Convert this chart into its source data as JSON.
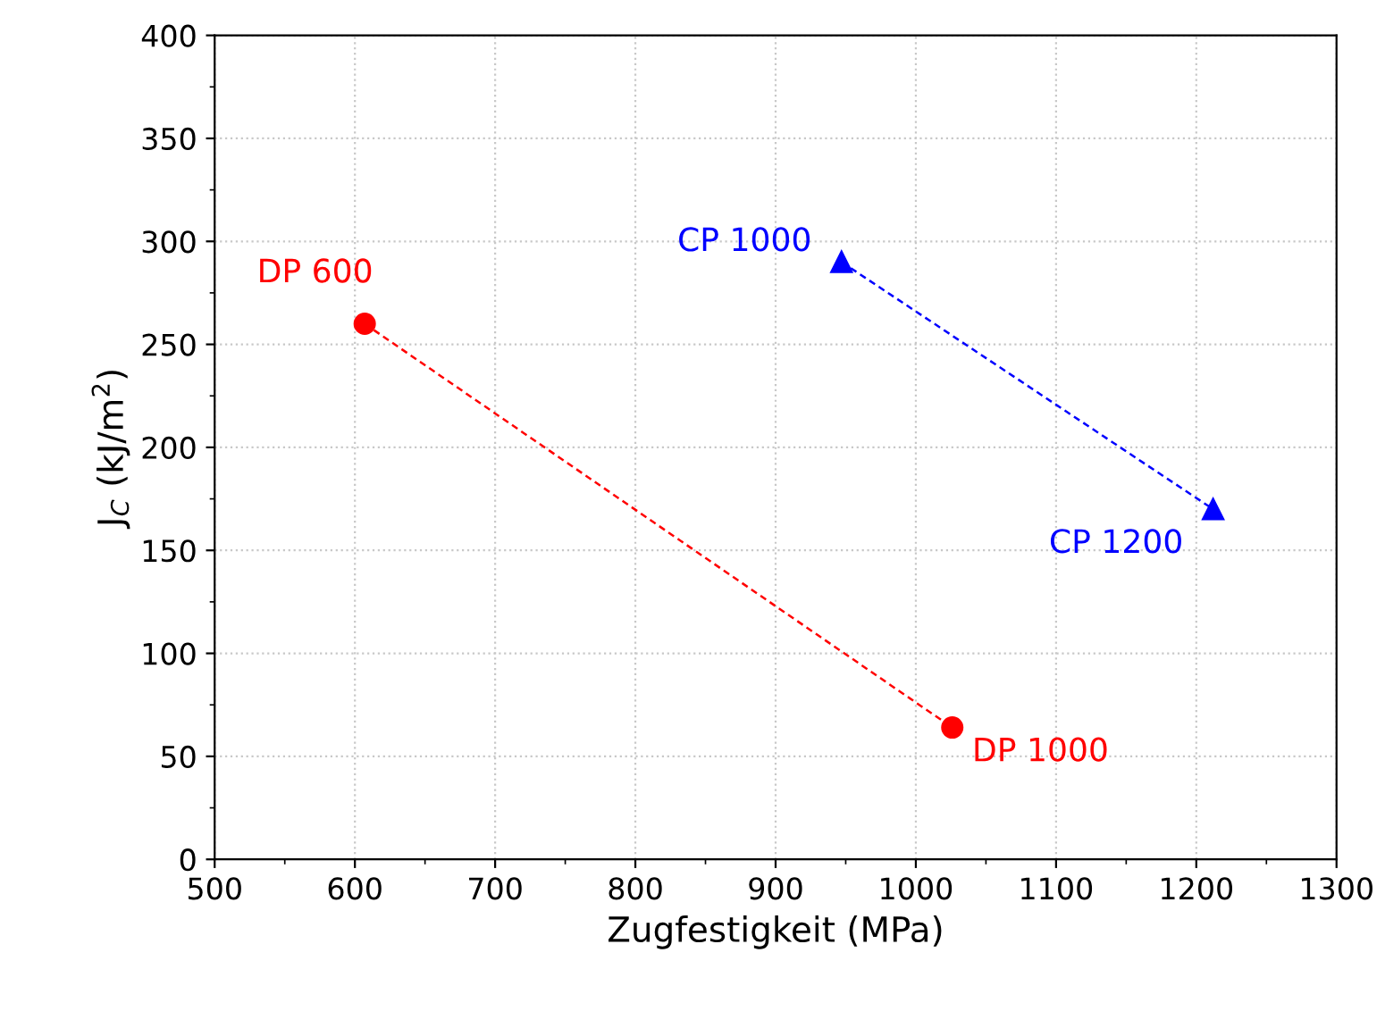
{
  "chart_data": {
    "type": "line",
    "xlabel": "Zugfestigkeit (MPa)",
    "ylabel": "J$_{C}$ (kJ/m$^{2}$)",
    "xlim": [
      500,
      1300
    ],
    "xticks": [
      500,
      600,
      700,
      800,
      900,
      1000,
      1100,
      1200,
      1300
    ],
    "ylim": [
      0,
      400
    ],
    "yticks": [
      0,
      50,
      100,
      150,
      200,
      250,
      300,
      350,
      400
    ],
    "grid": true,
    "line_style": "dashed",
    "series": [
      {
        "color": "#ff0000",
        "x": [
          607,
          1026
        ],
        "values": [
          260,
          64
        ],
        "marker": "circle"
      },
      {
        "color": "#0000ff",
        "x": [
          947,
          1212
        ],
        "values": [
          290,
          170
        ],
        "marker": "triangle"
      }
    ],
    "annotations": [
      {
        "text": "DP 600",
        "x": 607,
        "y": 260
      },
      {
        "text": "DP 1000",
        "x": 1026,
        "y": 64
      },
      {
        "text": "CP 1000",
        "x": 947,
        "y": 290
      },
      {
        "text": "CP 1200",
        "x": 1212,
        "y": 170
      }
    ]
  }
}
